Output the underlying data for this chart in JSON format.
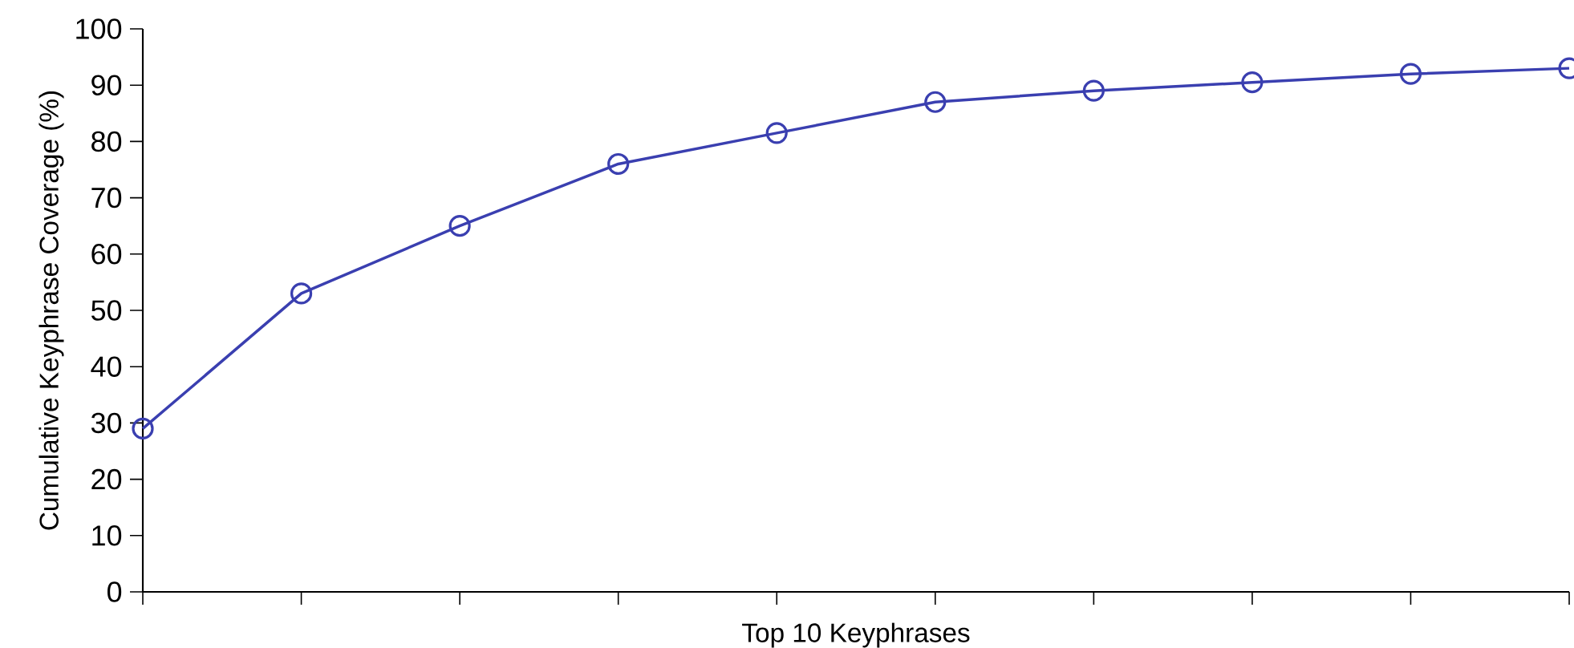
{
  "chart_data": {
    "type": "line",
    "xlabel": "Top 10 Keyphrases",
    "ylabel": "Cumulative Keyphrase Coverage (%)",
    "categories": [
      null,
      null,
      null,
      null,
      null,
      null,
      null,
      null,
      null,
      null
    ],
    "series": [
      {
        "color": "#3a3fb0",
        "values": [
          29,
          53,
          65,
          76,
          81.5,
          87,
          89,
          90.5,
          92,
          93
        ]
      }
    ],
    "ylim": [
      0,
      100
    ],
    "yticks": [
      0,
      10,
      20,
      30,
      40,
      50,
      60,
      70,
      80,
      90,
      100
    ],
    "marker": "circle",
    "line_style": "solid"
  }
}
